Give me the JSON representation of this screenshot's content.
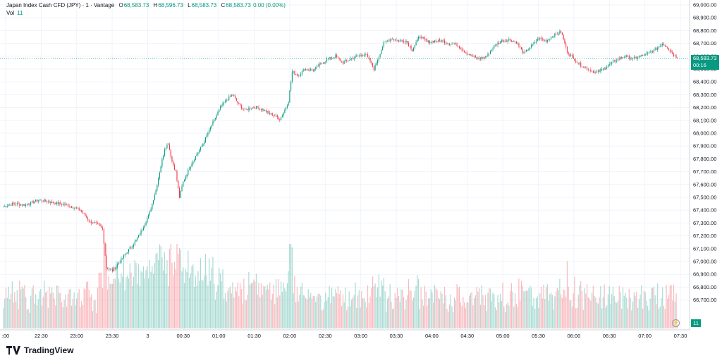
{
  "legend": {
    "symbol": "Japan Index Cash CFD (JPY) · 1 · Vantage",
    "open_label": "O",
    "open": "68,583.73",
    "high_label": "H",
    "high": "68,596.73",
    "low_label": "L",
    "low": "68,583.73",
    "close_label": "C",
    "close": "68,583.73",
    "change": "0.00 (0.00%)",
    "vol_label": "Vol",
    "vol": "11"
  },
  "price_tag": {
    "price": "68,583.73",
    "countdown": "00:16"
  },
  "vol_tag": "11",
  "logo_text": "TradingView",
  "chart_data": {
    "type": "candlestick",
    "title": "Japan Index Cash CFD (JPY) · 1 · Vantage",
    "interval": "1 minute",
    "xlabel": "",
    "ylabel": "",
    "y_range": [
      66700,
      69000
    ],
    "y_ticks": [
      "69,000.00",
      "68,900.00",
      "68,800.00",
      "68,700.00",
      "68,600.00",
      "68,500.00",
      "68,400.00",
      "68,300.00",
      "68,200.00",
      "68,100.00",
      "68,000.00",
      "67,900.00",
      "67,800.00",
      "67,700.00",
      "67,600.00",
      "67,500.00",
      "67,400.00",
      "67,300.00",
      "67,200.00",
      "67,100.00",
      "67,000.00",
      "66,900.00",
      "66,800.00",
      "66,700.00"
    ],
    "x_ticks": [
      ":00",
      "22:30",
      "23:00",
      "23:30",
      "3",
      "00:30",
      "01:00",
      "01:30",
      "02:00",
      "02:30",
      "03:00",
      "03:30",
      "04:00",
      "04:30",
      "05:00",
      "05:30",
      "06:00",
      "06:30",
      "07:00",
      "07:30"
    ],
    "current_price_line": 68583.73,
    "close_path": [
      [
        0,
        67430
      ],
      [
        8,
        67450
      ],
      [
        18,
        67440
      ],
      [
        28,
        67480
      ],
      [
        40,
        67460
      ],
      [
        52,
        67440
      ],
      [
        62,
        67400
      ],
      [
        70,
        67310
      ],
      [
        76,
        67290
      ],
      [
        80,
        67250
      ],
      [
        83,
        66950
      ],
      [
        88,
        66930
      ],
      [
        94,
        67000
      ],
      [
        100,
        67080
      ],
      [
        106,
        67150
      ],
      [
        112,
        67250
      ],
      [
        118,
        67380
      ],
      [
        123,
        67560
      ],
      [
        126,
        67700
      ],
      [
        130,
        67880
      ],
      [
        133,
        67920
      ],
      [
        136,
        67780
      ],
      [
        139,
        67700
      ],
      [
        142,
        67500
      ],
      [
        145,
        67620
      ],
      [
        150,
        67730
      ],
      [
        155,
        67820
      ],
      [
        160,
        67900
      ],
      [
        165,
        68000
      ],
      [
        170,
        68100
      ],
      [
        175,
        68200
      ],
      [
        180,
        68260
      ],
      [
        185,
        68300
      ],
      [
        190,
        68220
      ],
      [
        195,
        68180
      ],
      [
        200,
        68200
      ],
      [
        205,
        68200
      ],
      [
        210,
        68180
      ],
      [
        215,
        68150
      ],
      [
        220,
        68130
      ],
      [
        223,
        68110
      ],
      [
        227,
        68180
      ],
      [
        230,
        68250
      ],
      [
        233,
        68480
      ],
      [
        238,
        68450
      ],
      [
        243,
        68500
      ],
      [
        250,
        68490
      ],
      [
        256,
        68540
      ],
      [
        262,
        68580
      ],
      [
        268,
        68600
      ],
      [
        274,
        68550
      ],
      [
        280,
        68580
      ],
      [
        286,
        68600
      ],
      [
        292,
        68620
      ],
      [
        296,
        68560
      ],
      [
        299,
        68500
      ],
      [
        303,
        68600
      ],
      [
        307,
        68700
      ],
      [
        313,
        68740
      ],
      [
        319,
        68720
      ],
      [
        325,
        68720
      ],
      [
        330,
        68650
      ],
      [
        336,
        68760
      ],
      [
        342,
        68710
      ],
      [
        348,
        68720
      ],
      [
        354,
        68720
      ],
      [
        360,
        68700
      ],
      [
        366,
        68690
      ],
      [
        372,
        68640
      ],
      [
        378,
        68600
      ],
      [
        384,
        68580
      ],
      [
        390,
        68600
      ],
      [
        396,
        68680
      ],
      [
        402,
        68720
      ],
      [
        408,
        68730
      ],
      [
        414,
        68710
      ],
      [
        420,
        68620
      ],
      [
        426,
        68680
      ],
      [
        432,
        68740
      ],
      [
        438,
        68720
      ],
      [
        444,
        68760
      ],
      [
        450,
        68790
      ],
      [
        455,
        68640
      ],
      [
        460,
        68580
      ],
      [
        466,
        68530
      ],
      [
        472,
        68500
      ],
      [
        478,
        68470
      ],
      [
        484,
        68500
      ],
      [
        490,
        68540
      ],
      [
        496,
        68580
      ],
      [
        502,
        68600
      ],
      [
        508,
        68580
      ],
      [
        514,
        68600
      ],
      [
        520,
        68620
      ],
      [
        526,
        68650
      ],
      [
        532,
        68700
      ],
      [
        535,
        68680
      ],
      [
        540,
        68620
      ],
      [
        544,
        68583.73
      ]
    ],
    "volume_note": "volume bars up to ~150, last bar 11"
  }
}
